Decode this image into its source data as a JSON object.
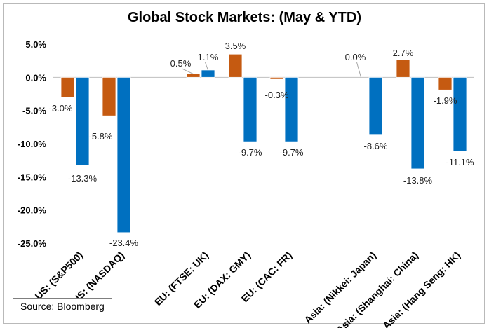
{
  "chart_data": {
    "type": "bar",
    "title": "Global Stock Markets: (May & YTD)",
    "categories": [
      "US: (S&P500)",
      "US: (NASDAQ)",
      "EU: (FTSE: UK)",
      "EU: (DAX: GMY)",
      "EU: (CAC: FR)",
      "Asia: (Nikkei: Japan)",
      "Asia: (Shanghai: China)",
      "Asia: (Hang Seng: HK)"
    ],
    "series": [
      {
        "values": [
          -3.0,
          -5.8,
          0.5,
          3.5,
          -0.3,
          0.0,
          2.7,
          -1.9
        ],
        "labels": [
          "-3.0%",
          "-5.8%",
          "0.5%",
          "3.5%",
          "-0.3%",
          "0.0%",
          "2.7%",
          "-1.9%"
        ],
        "color": "#C55A11"
      },
      {
        "values": [
          -13.3,
          -23.4,
          1.1,
          -9.7,
          -9.7,
          -8.6,
          -13.8,
          -11.1
        ],
        "labels": [
          "-13.3%",
          "-23.4%",
          "1.1%",
          "-9.7%",
          "-9.7%",
          "-8.6%",
          "-13.8%",
          "-11.1%"
        ],
        "color": "#0070C0"
      }
    ],
    "ylim": [
      -25,
      5
    ],
    "yticks": [
      5,
      0,
      -5,
      -10,
      -15,
      -20,
      -25
    ],
    "ytick_labels": [
      "5.0%",
      "0.0%",
      "-5.0%",
      "-10.0%",
      "-15.0%",
      "-20.0%",
      "-25.0%"
    ],
    "grid": false,
    "legend": "none",
    "source": "Source: Bloomberg"
  }
}
